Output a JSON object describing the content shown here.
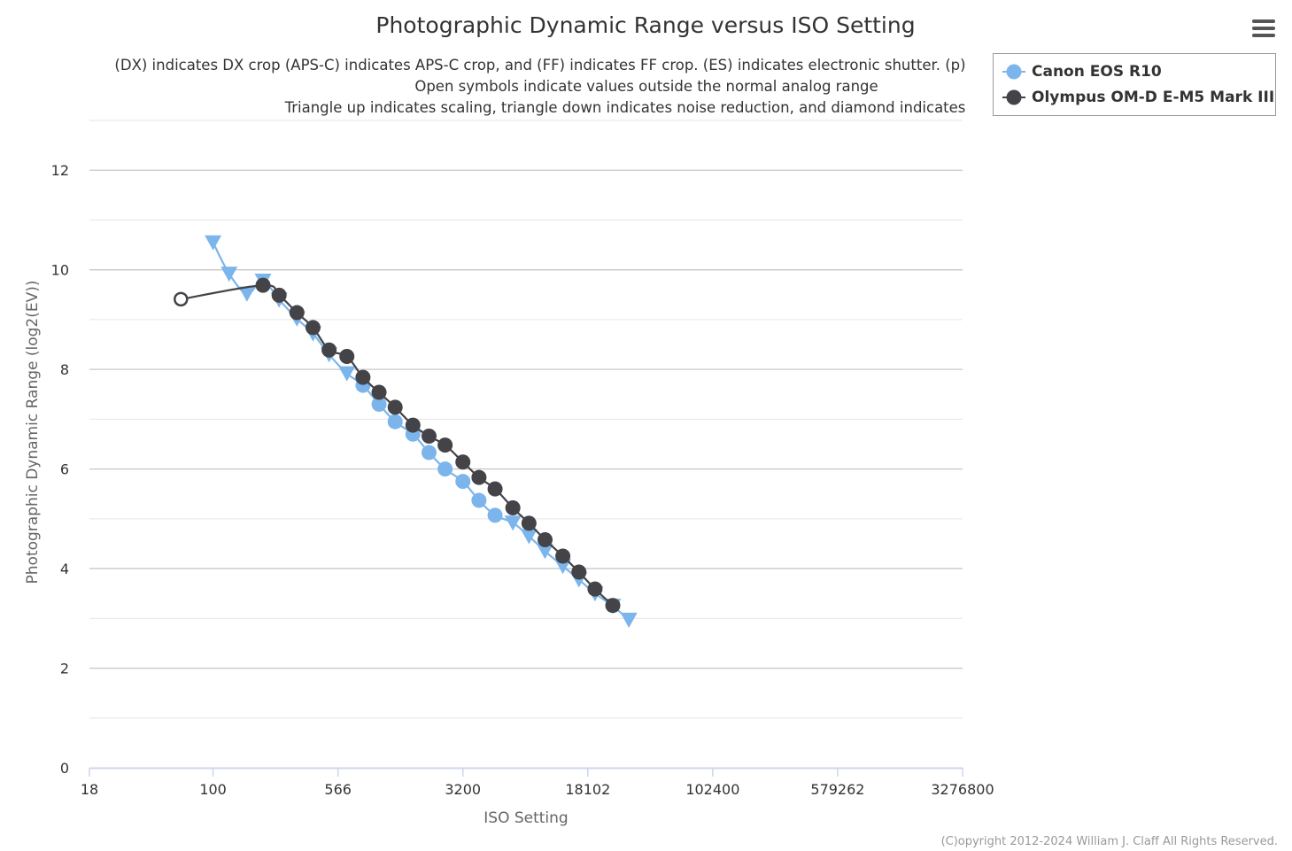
{
  "menu": {
    "icon": "hamburger-menu-icon"
  },
  "credits": "(C)opyright 2012-2024 William J. Claff All Rights Reserved.",
  "colors": {
    "canon": "#7cb5ec",
    "olympus": "#434348",
    "grid": "#d8d8d8",
    "axis": "#ccd6eb",
    "text": "#333333",
    "axis_label": "#666666"
  },
  "chart_data": {
    "type": "line",
    "title": "Photographic Dynamic Range versus ISO Setting",
    "subtitle": [
      "(DX) indicates DX crop (APS-C) indicates APS-C crop, and (FF) indicates FF crop. (ES) indicates electronic shutter. (p)",
      "Open symbols indicate values outside the normal analog range",
      "Triangle up indicates scaling, triangle down indicates noise reduction, and diamond indicates"
    ],
    "xlabel": "ISO Setting",
    "ylabel": "Photographic Dynamic Range (log2(EV))",
    "x_scale": "log2",
    "xlim": [
      18,
      3276800
    ],
    "ylim": [
      0,
      13
    ],
    "x_ticks": [
      "18",
      "100",
      "566",
      "3200",
      "18102",
      "102400",
      "579262",
      "3276800"
    ],
    "y_ticks": [
      0,
      2,
      4,
      6,
      8,
      10,
      12
    ],
    "grid": true,
    "legend_position": "top-right",
    "series": [
      {
        "name": "Canon EOS R10",
        "color": "#7cb5ec",
        "points": [
          {
            "x": 100,
            "y": 10.55,
            "marker": "triangle-down"
          },
          {
            "x": 125,
            "y": 9.92,
            "marker": "triangle-down"
          },
          {
            "x": 160,
            "y": 9.52,
            "marker": "triangle-down"
          },
          {
            "x": 200,
            "y": 9.78,
            "marker": "triangle-down"
          },
          {
            "x": 250,
            "y": 9.4,
            "marker": "triangle-down"
          },
          {
            "x": 320,
            "y": 9.02,
            "marker": "triangle-down"
          },
          {
            "x": 400,
            "y": 8.72,
            "marker": "triangle-down"
          },
          {
            "x": 500,
            "y": 8.3,
            "marker": "triangle-down"
          },
          {
            "x": 640,
            "y": 7.92,
            "marker": "triangle-down"
          },
          {
            "x": 800,
            "y": 7.68,
            "marker": "circle"
          },
          {
            "x": 1000,
            "y": 7.3,
            "marker": "circle"
          },
          {
            "x": 1250,
            "y": 6.95,
            "marker": "circle"
          },
          {
            "x": 1600,
            "y": 6.7,
            "marker": "circle"
          },
          {
            "x": 2000,
            "y": 6.33,
            "marker": "circle"
          },
          {
            "x": 2500,
            "y": 6.0,
            "marker": "circle"
          },
          {
            "x": 3200,
            "y": 5.75,
            "marker": "circle"
          },
          {
            "x": 4000,
            "y": 5.37,
            "marker": "circle"
          },
          {
            "x": 5000,
            "y": 5.07,
            "marker": "circle"
          },
          {
            "x": 6400,
            "y": 4.92,
            "marker": "triangle-down"
          },
          {
            "x": 8000,
            "y": 4.65,
            "marker": "triangle-down"
          },
          {
            "x": 10000,
            "y": 4.35,
            "marker": "triangle-down"
          },
          {
            "x": 12800,
            "y": 4.05,
            "marker": "triangle-down"
          },
          {
            "x": 16000,
            "y": 3.78,
            "marker": "triangle-down"
          },
          {
            "x": 20000,
            "y": 3.5,
            "marker": "triangle-down"
          },
          {
            "x": 25600,
            "y": 3.25,
            "marker": "triangle-down"
          },
          {
            "x": 32000,
            "y": 2.97,
            "marker": "triangle-down"
          }
        ]
      },
      {
        "name": "Olympus OM-D E-M5 Mark III",
        "color": "#434348",
        "points": [
          {
            "x": 64,
            "y": 9.41,
            "marker": "circle-open"
          },
          {
            "x": 200,
            "y": 9.69,
            "marker": "circle"
          },
          {
            "x": 250,
            "y": 9.49,
            "marker": "circle"
          },
          {
            "x": 320,
            "y": 9.14,
            "marker": "circle"
          },
          {
            "x": 400,
            "y": 8.84,
            "marker": "circle"
          },
          {
            "x": 500,
            "y": 8.39,
            "marker": "circle"
          },
          {
            "x": 640,
            "y": 8.26,
            "marker": "circle"
          },
          {
            "x": 800,
            "y": 7.84,
            "marker": "circle"
          },
          {
            "x": 1000,
            "y": 7.54,
            "marker": "circle"
          },
          {
            "x": 1250,
            "y": 7.24,
            "marker": "circle"
          },
          {
            "x": 1600,
            "y": 6.88,
            "marker": "circle"
          },
          {
            "x": 2000,
            "y": 6.66,
            "marker": "circle"
          },
          {
            "x": 2500,
            "y": 6.48,
            "marker": "circle"
          },
          {
            "x": 3200,
            "y": 6.14,
            "marker": "circle"
          },
          {
            "x": 4000,
            "y": 5.83,
            "marker": "circle"
          },
          {
            "x": 5000,
            "y": 5.6,
            "marker": "circle"
          },
          {
            "x": 6400,
            "y": 5.22,
            "marker": "circle"
          },
          {
            "x": 8000,
            "y": 4.91,
            "marker": "circle"
          },
          {
            "x": 10000,
            "y": 4.58,
            "marker": "circle"
          },
          {
            "x": 12800,
            "y": 4.25,
            "marker": "circle"
          },
          {
            "x": 16000,
            "y": 3.93,
            "marker": "circle"
          },
          {
            "x": 20000,
            "y": 3.59,
            "marker": "circle"
          },
          {
            "x": 25600,
            "y": 3.26,
            "marker": "circle"
          }
        ]
      }
    ]
  }
}
